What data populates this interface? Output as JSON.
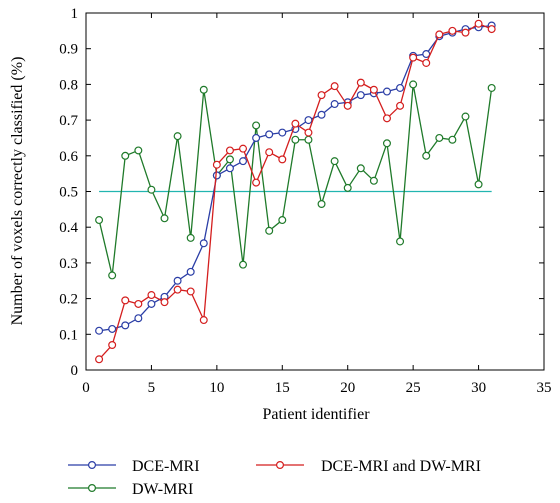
{
  "chart_data": {
    "type": "line",
    "xlabel": "Patient identifier",
    "ylabel": "Number of voxels correctly classified (%)",
    "xlim": [
      0,
      35
    ],
    "ylim": [
      0,
      1
    ],
    "x_ticks": [
      0,
      5,
      10,
      15,
      20,
      25,
      30,
      35
    ],
    "y_ticks": [
      0,
      0.1,
      0.2,
      0.3,
      0.4,
      0.5,
      0.6,
      0.7,
      0.8,
      0.9,
      1
    ],
    "x_tick_labels": [
      "0",
      "5",
      "10",
      "15",
      "20",
      "25",
      "30",
      "35"
    ],
    "y_tick_labels": [
      "0",
      "0.1",
      "0.2",
      "0.3",
      "0.4",
      "0.5",
      "0.6",
      "0.7",
      "0.8",
      "0.9",
      "1"
    ],
    "grid": false,
    "legend_position": "bottom",
    "x": [
      1,
      2,
      3,
      4,
      5,
      6,
      7,
      8,
      9,
      10,
      11,
      12,
      13,
      14,
      15,
      16,
      17,
      18,
      19,
      20,
      21,
      22,
      23,
      24,
      25,
      26,
      27,
      28,
      29,
      30,
      31
    ],
    "series": [
      {
        "name": "DCE-MRI",
        "color": "#2b3ea6",
        "marker": "circle",
        "values": [
          0.11,
          0.115,
          0.125,
          0.145,
          0.185,
          0.205,
          0.25,
          0.275,
          0.355,
          0.545,
          0.565,
          0.585,
          0.65,
          0.66,
          0.665,
          0.675,
          0.7,
          0.715,
          0.745,
          0.75,
          0.77,
          0.775,
          0.78,
          0.79,
          0.88,
          0.885,
          0.935,
          0.945,
          0.955,
          0.96,
          0.965
        ]
      },
      {
        "name": "DW-MRI",
        "color": "#1f7a2a",
        "marker": "circle",
        "values": [
          0.42,
          0.265,
          0.6,
          0.615,
          0.505,
          0.425,
          0.655,
          0.37,
          0.785,
          0.545,
          0.59,
          0.295,
          0.685,
          0.39,
          0.42,
          0.645,
          0.645,
          0.465,
          0.585,
          0.51,
          0.565,
          0.53,
          0.635,
          0.36,
          0.8,
          0.6,
          0.65,
          0.645,
          0.71,
          0.52,
          0.79
        ]
      },
      {
        "name": "DCE-MRI and DW-MRI",
        "color": "#d41e1e",
        "marker": "circle",
        "values": [
          0.03,
          0.07,
          0.195,
          0.185,
          0.21,
          0.19,
          0.225,
          0.22,
          0.14,
          0.575,
          0.615,
          0.62,
          0.525,
          0.61,
          0.59,
          0.69,
          0.665,
          0.77,
          0.795,
          0.74,
          0.805,
          0.785,
          0.705,
          0.74,
          0.875,
          0.86,
          0.94,
          0.95,
          0.945,
          0.97,
          0.955
        ]
      }
    ],
    "reference_line": {
      "y": 0.5,
      "x_range": [
        1,
        31
      ],
      "color": "#22b5b0"
    }
  }
}
